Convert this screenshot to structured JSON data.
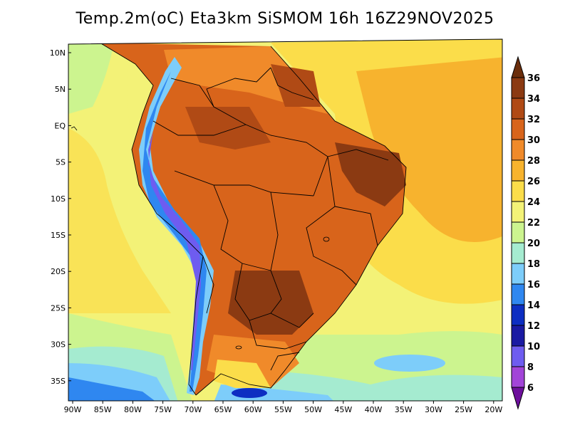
{
  "title": "Temp.2m(oC) Eta3km SiSMOM 16h 16Z29NOV2025",
  "lat_labels": [
    "10N",
    "5N",
    "EQ",
    "5S",
    "10S",
    "15S",
    "20S",
    "25S",
    "30S",
    "35S"
  ],
  "lon_labels": [
    "90W",
    "85W",
    "80W",
    "75W",
    "70W",
    "65W",
    "60W",
    "55W",
    "50W",
    "45W",
    "40W",
    "35W",
    "30W",
    "25W",
    "20W"
  ],
  "colorbar": {
    "labels": [
      "36",
      "34",
      "32",
      "30",
      "28",
      "26",
      "24",
      "22",
      "20",
      "18",
      "16",
      "14",
      "12",
      "10",
      "8",
      "6"
    ],
    "colors": [
      "#6b2e0c",
      "#8b3a12",
      "#b04a15",
      "#d8641b",
      "#f08a2a",
      "#f7b32e",
      "#fbdd4a",
      "#f3f277",
      "#ccf48f",
      "#a5ebd0",
      "#7dcdfa",
      "#2f87f0",
      "#0d2ec2",
      "#1a1aa3",
      "#6e5cf0",
      "#a244d8",
      "#6d0f9c"
    ]
  },
  "legend_label": "Temp.2m(oC)",
  "colors": {
    "ocean_warm": "#f7b32e",
    "ocean_mild": "#fbdd4a",
    "ocean_cool": "#f3f277",
    "land_hot": "#d8641b",
    "land_very_hot": "#8b3a12",
    "andes_cold": "#2f87f0"
  }
}
